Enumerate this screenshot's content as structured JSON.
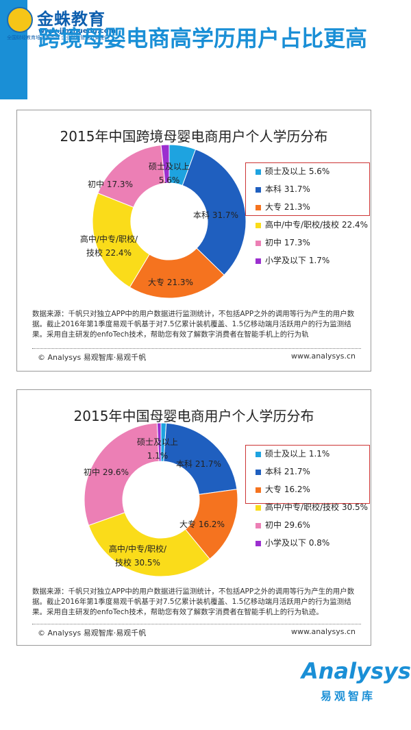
{
  "logo": {
    "name": "金蛛教育",
    "url": "www.jinzhuedu.com",
    "slogan": "全国财经教育培训服务商 企业财税管理方案提供"
  },
  "page_title": "跨境母婴电商高学历用户占比更高",
  "colors": {
    "accent": "#1a8fd6"
  },
  "chart_data": [
    {
      "type": "pie",
      "title": "2015年中国跨境母婴电商用户个人学历分布",
      "categories": [
        "硕士及以上",
        "本科",
        "大专",
        "高中/中专/职校/技校",
        "初中",
        "小学及以下"
      ],
      "values": [
        5.6,
        31.7,
        21.3,
        22.4,
        17.3,
        1.7
      ],
      "value_labels": [
        "5.6%",
        "31.7%",
        "21.3%",
        "22.4%",
        "17.3%",
        "1.7%"
      ],
      "colors": [
        "#1ea3e0",
        "#1f5fbf",
        "#f5731f",
        "#fadc1a",
        "#ec7fb5",
        "#9b2fcf"
      ],
      "slice_labels": [
        [
          "硕士及以上",
          "5.6%"
        ],
        [
          "本科  31.7%"
        ],
        [
          "大专  21.3%"
        ],
        [
          "高中/中专/职校/",
          "技校  22.4%"
        ],
        [
          "初中  17.3%"
        ],
        []
      ],
      "legend_position": "right"
    },
    {
      "type": "pie",
      "title": "2015年中国母婴电商用户个人学历分布",
      "categories": [
        "硕士及以上",
        "本科",
        "大专",
        "高中/中专/职校/技校",
        "初中",
        "小学及以下"
      ],
      "values": [
        1.1,
        21.7,
        16.2,
        30.5,
        29.6,
        0.8
      ],
      "value_labels": [
        "1.1%",
        "21.7%",
        "16.2%",
        "30.5%",
        "29.6%",
        "0.8%"
      ],
      "colors": [
        "#1ea3e0",
        "#1f5fbf",
        "#f5731f",
        "#fadc1a",
        "#ec7fb5",
        "#9b2fcf"
      ],
      "slice_labels": [
        [
          "硕士及以上",
          "1.1%"
        ],
        [
          "本科  21.7%"
        ],
        [
          "大专  16.2%"
        ],
        [
          "高中/中专/职校/",
          "技校  30.5%"
        ],
        [
          "初中  29.6%"
        ],
        []
      ],
      "legend_position": "right"
    }
  ],
  "panel1": {
    "source": "数据来源：千帆只对独立APP中的用户数据进行监测统计，不包括APP之外的调用等行为产生的用户数据。截止2016年第1季度易观千帆基于对7.5亿累计装机覆盖、1.5亿移动端月活跃用户的行为监测结果。采用自主研发的enfoTech技术，帮助您有效了解数字消费者在智能手机上的行为轨",
    "copyright": "© Analysys 易观智库·易观千帆",
    "website": "www.analysys.cn"
  },
  "panel2": {
    "source": "数据来源：千帆只对独立APP中的用户数据进行监测统计，不包括APP之外的调用等行为产生的用户数据。截止2016年第1季度易观千帆基于对7.5亿累计装机覆盖、1.5亿移动端月活跃用户的行为监测结果。采用自主研发的enfoTech技术，帮助您有效了解数字消费者在智能手机上的行为轨迹。",
    "copyright": "© Analysys 易观智库·易观千帆",
    "website": "www.analysys.cn"
  },
  "bottom_logo": {
    "main": "Analysys",
    "sub": "易观智库"
  }
}
